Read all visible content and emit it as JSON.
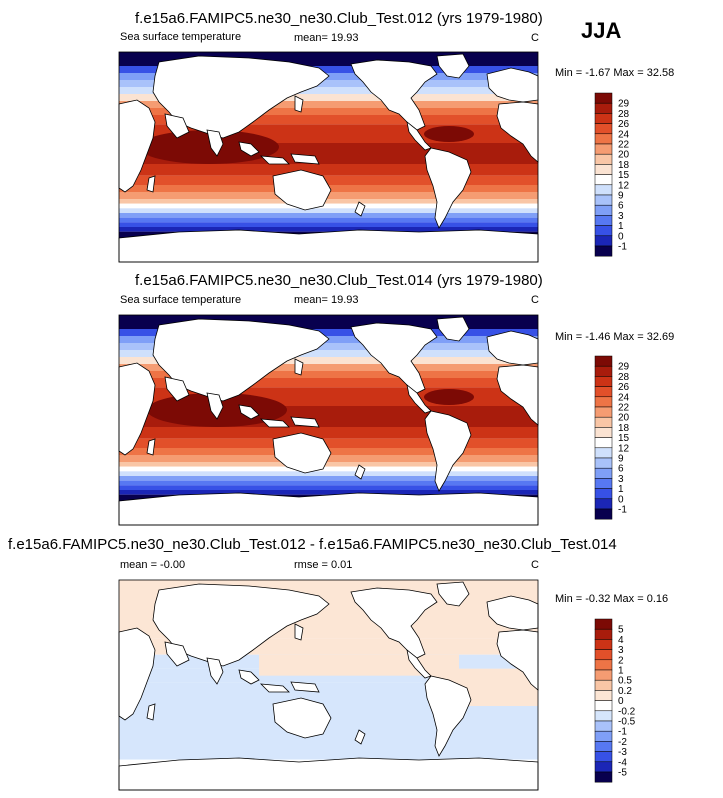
{
  "season": "JJA",
  "colors": {
    "full": [
      "#08004e",
      "#1b26b6",
      "#3751e6",
      "#5778f2",
      "#7f9ff7",
      "#a9c2fa",
      "#cfe0fc",
      "#ffffff",
      "#fbe3d2",
      "#f9c6a6",
      "#f59c72",
      "#ee7446",
      "#e2502a",
      "#cc3316",
      "#a81c0c",
      "#7c0a05"
    ],
    "diff": [
      "#08004e",
      "#1b26b6",
      "#3751e6",
      "#5778f2",
      "#7f9ff7",
      "#a9c2fa",
      "#d6e6fc",
      "#ffffff",
      "#fce6d5",
      "#f9c6a6",
      "#f59c72",
      "#ee7446",
      "#e2502a",
      "#cc3316",
      "#a81c0c",
      "#7c0a05"
    ]
  },
  "panels": [
    {
      "title": "f.e15a6.FAMIPC5.ne30_ne30.Club_Test.012 (yrs 1979-1980)",
      "left_label": "Sea surface temperature",
      "mid_label": "mean=  19.93",
      "right_label": "C",
      "minmax": "Min =  -1.67 Max =  32.58"
    },
    {
      "title": "f.e15a6.FAMIPC5.ne30_ne30.Club_Test.014 (yrs 1979-1980)",
      "left_label": "Sea surface temperature",
      "mid_label": "mean=  19.93",
      "right_label": "C",
      "minmax": "Min =  -1.46 Max =  32.69"
    },
    {
      "title": "f.e15a6.FAMIPC5.ne30_ne30.Club_Test.012 - f.e15a6.FAMIPC5.ne30_ne30.Club_Test.014",
      "left_label": "mean =  -0.00",
      "mid_label": "rmse =   0.01",
      "right_label": "C",
      "minmax": "Min =  -0.32 Max =   0.16"
    }
  ],
  "chart_data": [
    {
      "type": "heatmap",
      "title": "f.e15a6.FAMIPC5.ne30_ne30.Club_Test.012 (yrs 1979-1980)",
      "variable": "Sea surface temperature",
      "units": "C",
      "mean": 19.93,
      "min": -1.67,
      "max": 32.58,
      "contour_levels": [
        -1,
        0,
        1,
        3,
        6,
        9,
        12,
        15,
        18,
        20,
        22,
        24,
        26,
        28,
        29
      ],
      "colorbar_labels": [
        "29",
        "28",
        "26",
        "24",
        "22",
        "20",
        "18",
        "15",
        "12",
        "9",
        "6",
        "3",
        "1",
        "0",
        "-1"
      ]
    },
    {
      "type": "heatmap",
      "title": "f.e15a6.FAMIPC5.ne30_ne30.Club_Test.014 (yrs 1979-1980)",
      "variable": "Sea surface temperature",
      "units": "C",
      "mean": 19.93,
      "min": -1.46,
      "max": 32.69,
      "contour_levels": [
        -1,
        0,
        1,
        3,
        6,
        9,
        12,
        15,
        18,
        20,
        22,
        24,
        26,
        28,
        29
      ],
      "colorbar_labels": [
        "29",
        "28",
        "26",
        "24",
        "22",
        "20",
        "18",
        "15",
        "12",
        "9",
        "6",
        "3",
        "1",
        "0",
        "-1"
      ]
    },
    {
      "type": "heatmap",
      "title": "f.e15a6.FAMIPC5.ne30_ne30.Club_Test.012 - f.e15a6.FAMIPC5.ne30_ne30.Club_Test.014",
      "units": "C",
      "mean": -0.0,
      "rmse": 0.01,
      "min": -0.32,
      "max": 0.16,
      "contour_levels": [
        -5,
        -4,
        -3,
        -2,
        -1,
        -0.5,
        -0.2,
        0,
        0.2,
        0.5,
        1,
        2,
        3,
        4,
        5
      ],
      "colorbar_labels": [
        "5",
        "4",
        "3",
        "2",
        "1",
        "0.5",
        "0.2",
        "0",
        "-0.2",
        "-0.5",
        "-1",
        "-2",
        "-3",
        "-4",
        "-5"
      ]
    }
  ]
}
